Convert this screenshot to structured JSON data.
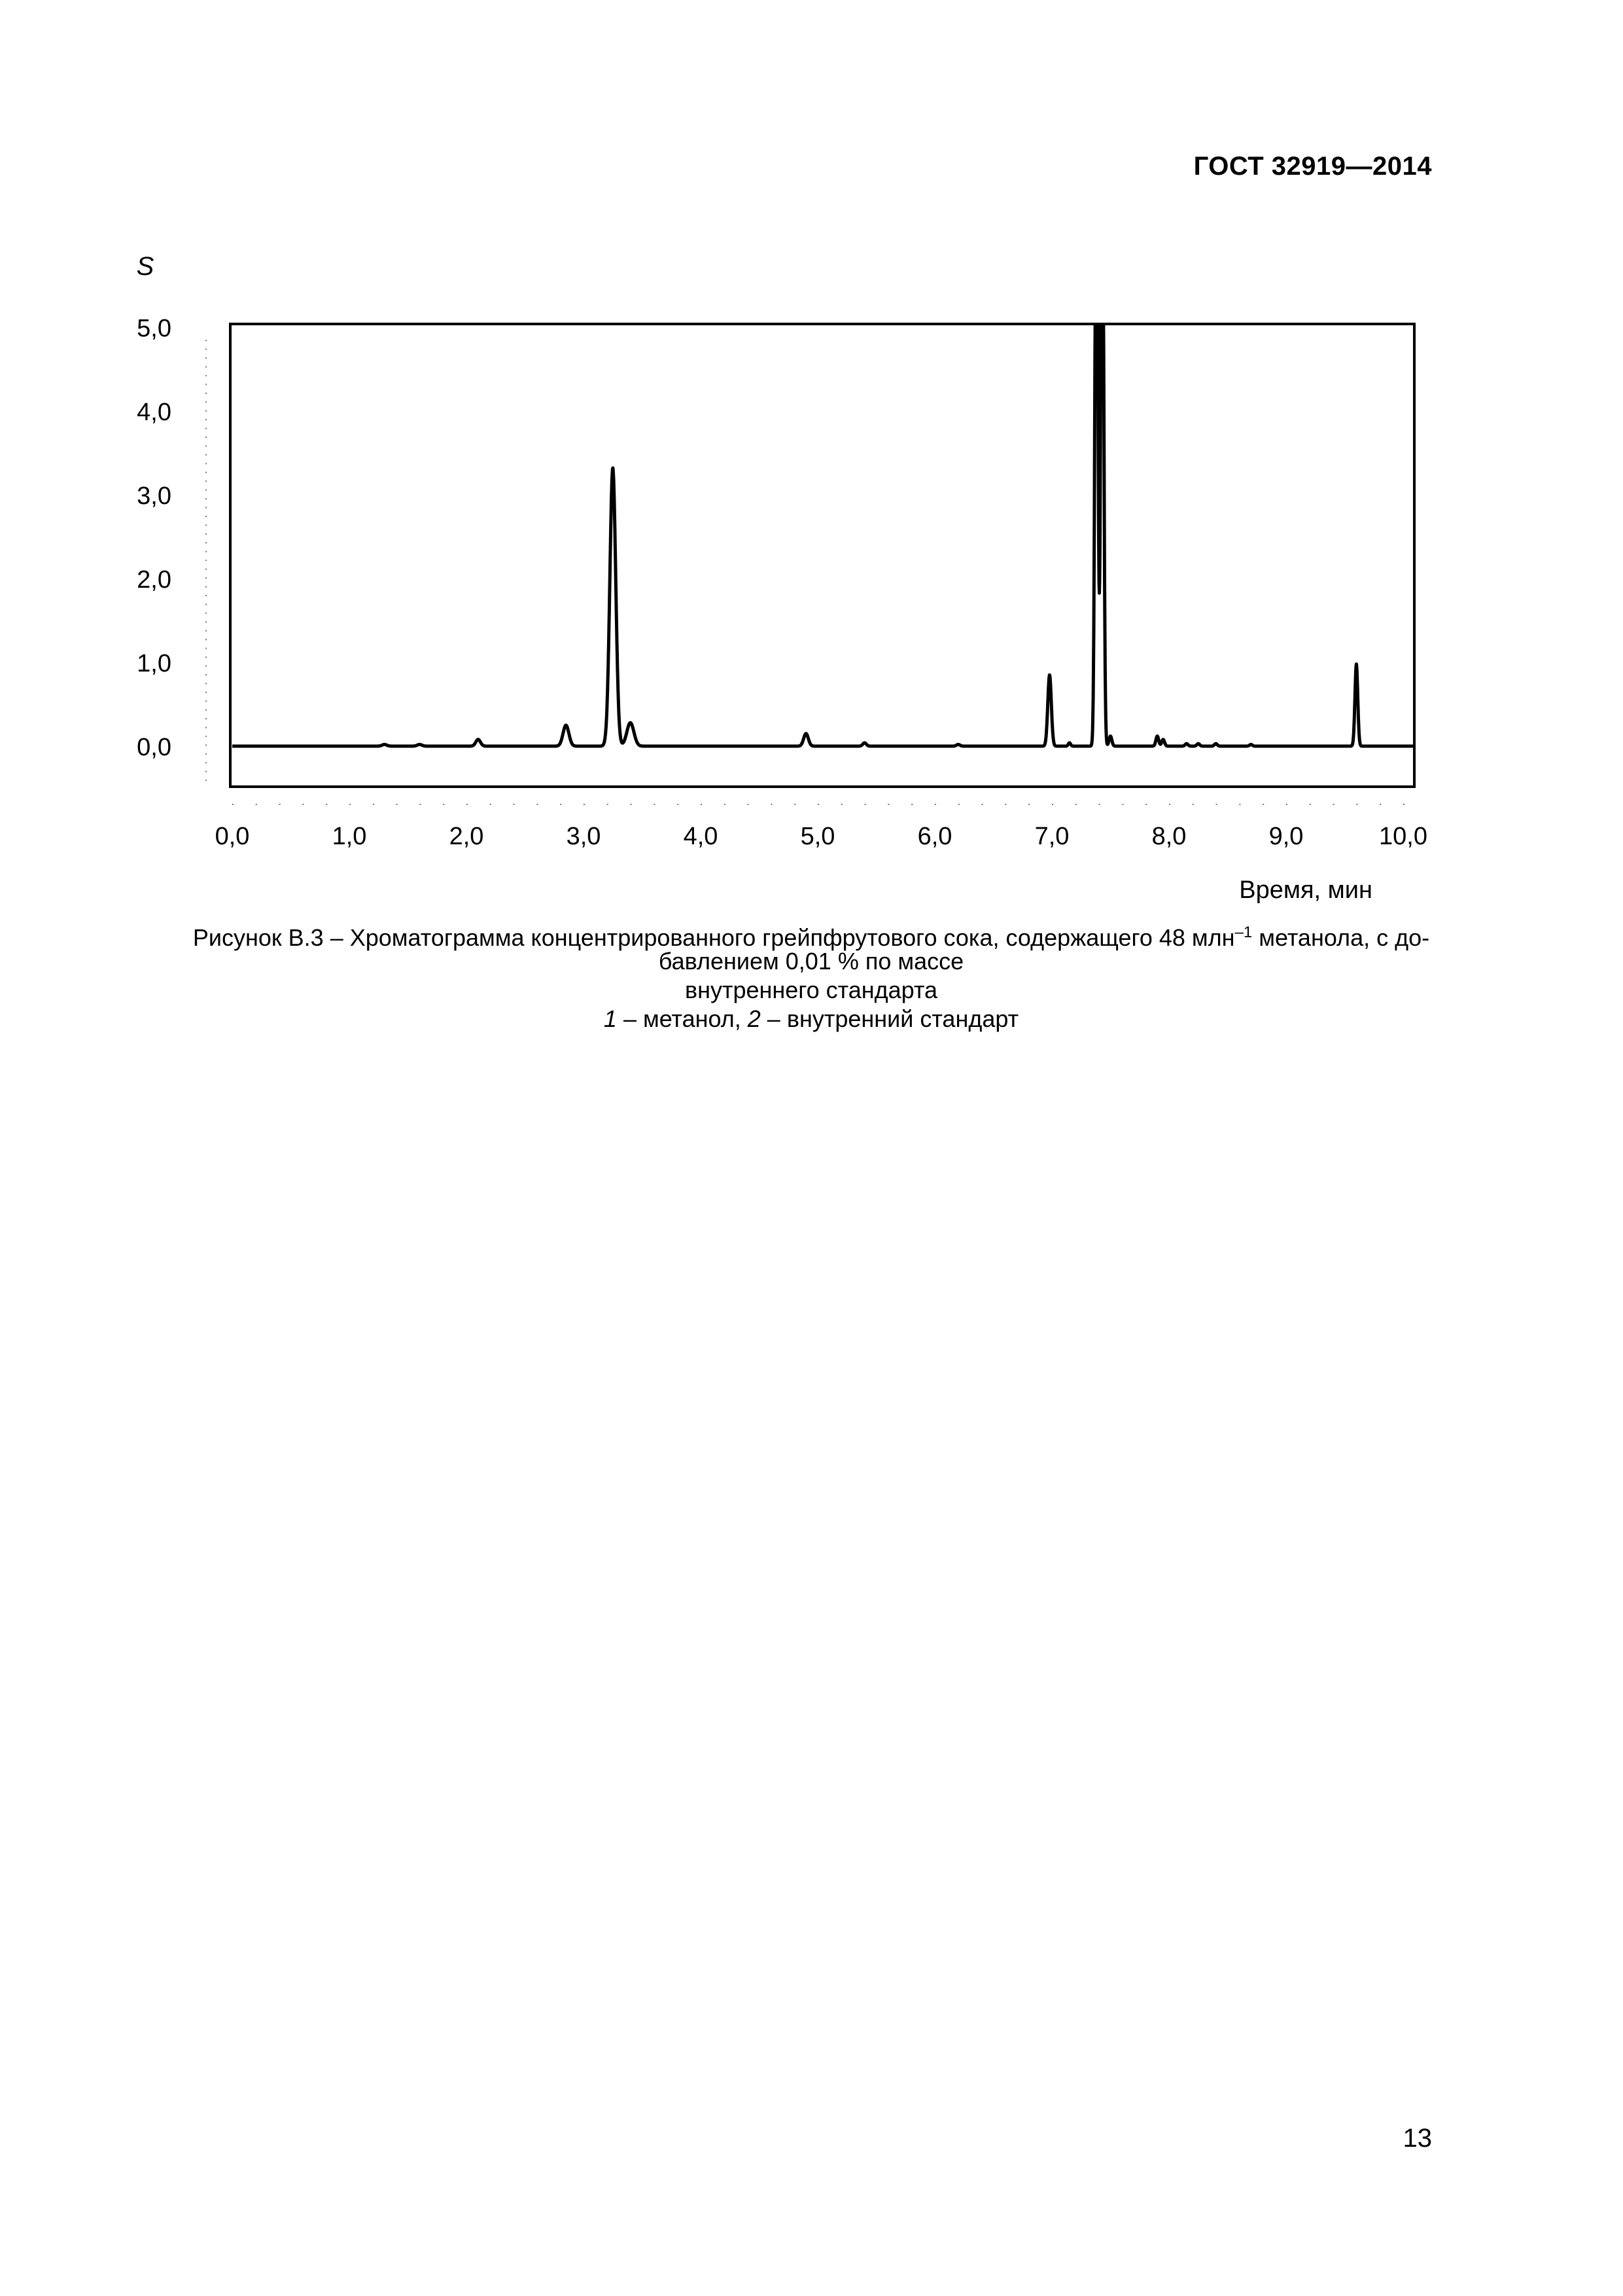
{
  "header": {
    "doc_id": "ГОСТ 32919—2014"
  },
  "chart_data": {
    "type": "line",
    "ylabel": "S",
    "xlabel": "Время, мин",
    "xlim": [
      0,
      10
    ],
    "ylim": [
      -0.5,
      5.0
    ],
    "x_ticks": [
      "0,0",
      "1,0",
      "2,0",
      "3,0",
      "4,0",
      "5,0",
      "6,0",
      "7,0",
      "8,0",
      "9,0",
      "10,0"
    ],
    "y_ticks": [
      "0,0",
      "1,0",
      "2,0",
      "3,0",
      "4,0",
      "5,0"
    ],
    "grid": false,
    "baseline": 0.0,
    "peaks": [
      {
        "x": 1.3,
        "height": 0.02,
        "width": 0.02
      },
      {
        "x": 1.6,
        "height": 0.02,
        "width": 0.02
      },
      {
        "x": 2.1,
        "height": 0.08,
        "width": 0.02
      },
      {
        "x": 2.85,
        "height": 0.25,
        "width": 0.025
      },
      {
        "x": 3.25,
        "height": 3.32,
        "width": 0.025
      },
      {
        "x": 3.4,
        "height": 0.28,
        "width": 0.03
      },
      {
        "x": 4.9,
        "height": 0.15,
        "width": 0.02
      },
      {
        "x": 5.4,
        "height": 0.04,
        "width": 0.015
      },
      {
        "x": 6.2,
        "height": 0.02,
        "width": 0.015
      },
      {
        "x": 6.98,
        "height": 0.85,
        "width": 0.015
      },
      {
        "x": 7.15,
        "height": 0.04,
        "width": 0.01
      },
      {
        "x": 7.38,
        "height": 8.0,
        "width": 0.012
      },
      {
        "x": 7.43,
        "height": 8.0,
        "width": 0.012
      },
      {
        "x": 7.5,
        "height": 0.12,
        "width": 0.012
      },
      {
        "x": 7.9,
        "height": 0.12,
        "width": 0.012
      },
      {
        "x": 7.95,
        "height": 0.08,
        "width": 0.012
      },
      {
        "x": 8.15,
        "height": 0.03,
        "width": 0.012
      },
      {
        "x": 8.25,
        "height": 0.03,
        "width": 0.012
      },
      {
        "x": 8.4,
        "height": 0.03,
        "width": 0.012
      },
      {
        "x": 8.7,
        "height": 0.02,
        "width": 0.012
      },
      {
        "x": 9.6,
        "height": 0.98,
        "width": 0.012
      }
    ]
  },
  "caption": {
    "line1_before": "Рисунок В.3 – Хроматограмма концентрированного грейпфрутового сока, содержащего 48 млн",
    "line1_sup": "–1",
    "line1_after": " метанола, с до-",
    "line2": "бавлением 0,01 % по массе",
    "line3": "внутреннего стандарта",
    "legend_n1": "1",
    "legend_t1": " – метанол, ",
    "legend_n2": "2",
    "legend_t2": " – внутренний стандарт"
  },
  "page_number": "13"
}
